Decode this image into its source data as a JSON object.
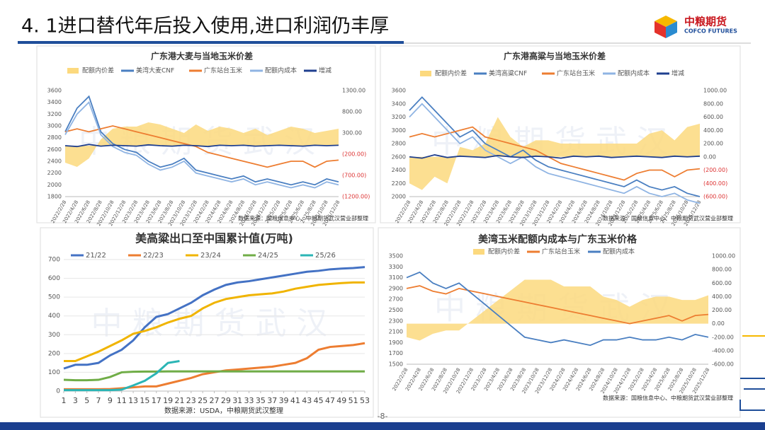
{
  "header": {
    "title": "4. 1进口替代年后投入使用,进口利润仍丰厚",
    "logo_cn": "中粮期货",
    "logo_en": "COFCO FUTURES"
  },
  "page_number": "-8-",
  "chart_data": [
    {
      "type": "line",
      "title": "广东港大麦与当地玉米价差",
      "watermark": "中粮期货武汉",
      "source": "数据来源：国粮信息中心、中粮期货武汉营业部整理",
      "categories": [
        "2022/2/28",
        "2022/4/28",
        "2022/6/28",
        "2022/8/28",
        "2022/10/28",
        "2022/12/28",
        "2023/2/28",
        "2023/4/28",
        "2023/6/28",
        "2023/8/28",
        "2023/10/28",
        "2023/12/28",
        "2024/2/28",
        "2024/4/28",
        "2024/6/28",
        "2024/8/28",
        "2024/10/28",
        "2024/12/28",
        "2025/2/28",
        "2025/4/28",
        "2025/6/28",
        "2025/8/28",
        "2025/10/28",
        "2025/12/28"
      ],
      "ylim": [
        1800,
        3600
      ],
      "yticks": [
        1800,
        2000,
        2200,
        2400,
        2600,
        2800,
        3000,
        3200,
        3400,
        3600
      ],
      "y2lim": [
        -1200,
        1300
      ],
      "y2ticks": [
        {
          "value": -1200,
          "label": "(1200.00)"
        },
        {
          "value": -700,
          "label": "(700.00)"
        },
        {
          "value": -200,
          "label": "(200.00)"
        },
        {
          "value": 300,
          "label": "300.00"
        },
        {
          "value": 800,
          "label": "800.00"
        },
        {
          "value": 1300,
          "label": "1300.00"
        }
      ],
      "grid": false,
      "series": [
        {
          "name": "配额内价差",
          "type": "area",
          "axis": "y2",
          "color": "#fcd97e",
          "values": [
            -400,
            -500,
            -300,
            150,
            400,
            450,
            450,
            550,
            500,
            400,
            300,
            500,
            350,
            450,
            400,
            300,
            400,
            250,
            350,
            450,
            400,
            300,
            350,
            400
          ]
        },
        {
          "name": "美湾大麦CNF",
          "color": "#4a7fc1",
          "values": [
            2900,
            3300,
            3500,
            2900,
            2700,
            2600,
            2550,
            2400,
            2300,
            2350,
            2450,
            2250,
            2200,
            2150,
            2100,
            2150,
            2050,
            2100,
            2050,
            2000,
            2050,
            2000,
            2100,
            2050
          ]
        },
        {
          "name": "广东站台玉米",
          "color": "#ed7d31",
          "values": [
            2900,
            2950,
            2900,
            2950,
            3000,
            2950,
            2900,
            2850,
            2800,
            2750,
            2700,
            2650,
            2550,
            2500,
            2450,
            2400,
            2350,
            2300,
            2350,
            2400,
            2400,
            2300,
            2400,
            2420
          ]
        },
        {
          "name": "配额内成本",
          "color": "#8fb4e3",
          "values": [
            2850,
            3200,
            3400,
            2850,
            2650,
            2550,
            2500,
            2350,
            2250,
            2300,
            2400,
            2200,
            2150,
            2100,
            2050,
            2100,
            2000,
            2050,
            2000,
            1950,
            2000,
            1950,
            2050,
            2000
          ]
        },
        {
          "name": "增减",
          "axis": "y2",
          "color": "#1f3f8f",
          "values": [
            0,
            -20,
            30,
            -10,
            10,
            0,
            -10,
            20,
            0,
            -10,
            10,
            0,
            -20,
            10,
            0,
            10,
            -10,
            0,
            10,
            0,
            -10,
            10,
            0,
            10
          ]
        }
      ]
    },
    {
      "type": "line",
      "title": "广东港高粱与当地玉米价差",
      "watermark": "中粮期货武汉",
      "source": "数据来源：国粮信息中心、中粮期货武汉营业部整理",
      "categories": [
        "2022/2/28",
        "2022/4/28",
        "2022/6/28",
        "2022/8/28",
        "2022/10/28",
        "2022/12/28",
        "2023/2/28",
        "2023/4/28",
        "2023/6/28",
        "2023/8/28",
        "2023/10/28",
        "2023/12/28",
        "2024/2/28",
        "2024/4/28",
        "2024/6/28",
        "2024/8/28",
        "2024/10/28",
        "2024/12/28",
        "2025/2/28",
        "2025/4/28",
        "2025/6/28",
        "2025/8/28",
        "2025/10/28",
        "2025/12/28"
      ],
      "ylim": [
        2000,
        3600
      ],
      "yticks": [
        2000,
        2200,
        2400,
        2600,
        2800,
        3000,
        3200,
        3400,
        3600
      ],
      "y2lim": [
        -600,
        1000
      ],
      "y2ticks": [
        {
          "value": -600,
          "label": "(600.00)"
        },
        {
          "value": -400,
          "label": "(400.00)"
        },
        {
          "value": -200,
          "label": "(200.00)"
        },
        {
          "value": 0,
          "label": "0.00"
        },
        {
          "value": 200,
          "label": "200.00"
        },
        {
          "value": 400,
          "label": "400.00"
        },
        {
          "value": 600,
          "label": "600.00"
        },
        {
          "value": 800,
          "label": "800.00"
        },
        {
          "value": 1000,
          "label": "1000.00"
        }
      ],
      "grid": false,
      "series": [
        {
          "name": "配额内价差",
          "type": "area",
          "axis": "y2",
          "color": "#fcd97e",
          "values": [
            -400,
            -500,
            -300,
            -400,
            150,
            100,
            200,
            600,
            300,
            150,
            250,
            250,
            200,
            200,
            200,
            200,
            200,
            200,
            200,
            350,
            400,
            250,
            450,
            500
          ]
        },
        {
          "name": "美湾高粱CNF",
          "color": "#4a7fc1",
          "values": [
            3300,
            3500,
            3300,
            3100,
            2900,
            3000,
            2800,
            2700,
            2600,
            2700,
            2550,
            2450,
            2400,
            2350,
            2300,
            2250,
            2200,
            2150,
            2250,
            2150,
            2100,
            2150,
            2050,
            2000
          ]
        },
        {
          "name": "广东站台玉米",
          "color": "#ed7d31",
          "values": [
            2900,
            2950,
            2900,
            2950,
            3000,
            3050,
            2900,
            2850,
            2800,
            2750,
            2700,
            2600,
            2500,
            2450,
            2400,
            2350,
            2300,
            2250,
            2350,
            2400,
            2400,
            2300,
            2400,
            2420
          ]
        },
        {
          "name": "配额内成本",
          "color": "#8fb4e3",
          "values": [
            3200,
            3400,
            3200,
            3000,
            2800,
            2900,
            2700,
            2600,
            2500,
            2600,
            2450,
            2350,
            2300,
            2250,
            2200,
            2150,
            2100,
            2050,
            2150,
            2050,
            2000,
            2050,
            1950,
            1900
          ]
        },
        {
          "name": "增减",
          "axis": "y2",
          "color": "#1f3f8f",
          "values": [
            0,
            -20,
            30,
            -10,
            10,
            0,
            -10,
            20,
            0,
            -10,
            10,
            0,
            -20,
            10,
            0,
            10,
            -10,
            0,
            10,
            0,
            -10,
            10,
            0,
            10
          ]
        }
      ]
    },
    {
      "type": "line",
      "title": "美高粱出口至中国累计值(万吨)",
      "watermark": "中粮期货武汉",
      "source": "数据来源：USDA，中粮期货武汉整理",
      "x": [
        1,
        3,
        5,
        7,
        9,
        11,
        13,
        15,
        17,
        19,
        21,
        23,
        25,
        27,
        29,
        31,
        33,
        35,
        37,
        39,
        41,
        43,
        45,
        47,
        49,
        51,
        53
      ],
      "xlim": [
        1,
        53
      ],
      "xticks": [
        1,
        3,
        5,
        7,
        9,
        11,
        13,
        15,
        17,
        19,
        21,
        23,
        25,
        27,
        29,
        31,
        33,
        35,
        37,
        39,
        41,
        43,
        45,
        47,
        49,
        51,
        53
      ],
      "ylim": [
        0,
        700
      ],
      "yticks": [
        0,
        100,
        200,
        300,
        400,
        500,
        600,
        700
      ],
      "grid": true,
      "series": [
        {
          "name": "21/22",
          "color": "#4472c4",
          "values": [
            120,
            140,
            140,
            150,
            190,
            220,
            270,
            340,
            395,
            410,
            440,
            470,
            510,
            540,
            565,
            578,
            585,
            595,
            605,
            615,
            625,
            635,
            640,
            648,
            652,
            655,
            660
          ]
        },
        {
          "name": "22/23",
          "color": "#ed7d31",
          "values": [
            10,
            10,
            10,
            10,
            11,
            15,
            20,
            25,
            25,
            40,
            55,
            70,
            90,
            100,
            110,
            115,
            120,
            125,
            130,
            140,
            150,
            175,
            220,
            235,
            240,
            245,
            255
          ]
        },
        {
          "name": "23/24",
          "color": "#f0b400",
          "values": [
            160,
            160,
            185,
            210,
            240,
            270,
            305,
            320,
            340,
            365,
            385,
            400,
            440,
            470,
            490,
            500,
            510,
            515,
            520,
            530,
            545,
            555,
            565,
            570,
            575,
            578,
            578
          ]
        },
        {
          "name": "24/25",
          "color": "#70ad47",
          "values": [
            60,
            58,
            58,
            60,
            75,
            100,
            103,
            104,
            104,
            105,
            105,
            105,
            105,
            105,
            105,
            105,
            105,
            105,
            105,
            105,
            105,
            105,
            105,
            105,
            105,
            105,
            105
          ]
        },
        {
          "name": "25/26",
          "color": "#2bb5b5",
          "values": [
            5,
            5,
            5,
            5,
            5,
            8,
            30,
            55,
            95,
            150,
            160,
            null,
            null,
            null,
            null,
            null,
            null,
            null,
            null,
            null,
            null,
            null,
            null,
            null,
            null,
            null,
            null
          ]
        }
      ]
    },
    {
      "type": "line",
      "title": "美湾玉米配额内成本与广东玉米价格",
      "watermark": "中粮期货武汉",
      "source": "数据来源：国粮信息中心、中粮期货武汉营业部整理",
      "categories": [
        "2022/2/28",
        "2022/4/28",
        "2022/6/28",
        "2022/8/28",
        "2022/10/28",
        "2022/12/28",
        "2023/2/28",
        "2023/4/28",
        "2023/6/28",
        "2023/8/28",
        "2023/10/28",
        "2023/12/28",
        "2024/2/28",
        "2024/4/28",
        "2024/6/28",
        "2024/8/28",
        "2024/10/28",
        "2024/12/28",
        "2025/2/28",
        "2025/4/28",
        "2025/6/28",
        "2025/8/28",
        "2025/10/28",
        "2025/12/28"
      ],
      "ylim": [
        1500,
        3500
      ],
      "yticks": [
        1500,
        1700,
        1900,
        2100,
        2300,
        2500,
        2700,
        2900,
        3100,
        3300,
        3500
      ],
      "y2lim": [
        -600,
        1000
      ],
      "y2ticks": [
        {
          "value": -600,
          "label": "-600.00"
        },
        {
          "value": -400,
          "label": "-400.00"
        },
        {
          "value": -200,
          "label": "-200.00"
        },
        {
          "value": 0,
          "label": "0.00"
        },
        {
          "value": 200,
          "label": "200.00"
        },
        {
          "value": 400,
          "label": "400.00"
        },
        {
          "value": 600,
          "label": "600.00"
        },
        {
          "value": 800,
          "label": "800.00"
        },
        {
          "value": 1000,
          "label": "1000.00"
        }
      ],
      "grid": false,
      "series": [
        {
          "name": "配额内价差",
          "type": "area",
          "axis": "y2",
          "color": "#fcd97e",
          "values": [
            -200,
            -250,
            -150,
            -100,
            -100,
            50,
            200,
            350,
            500,
            650,
            650,
            650,
            550,
            550,
            550,
            400,
            350,
            250,
            350,
            400,
            400,
            350,
            350,
            420
          ]
        },
        {
          "name": "广东站台玉米",
          "color": "#ed7d31",
          "values": [
            2900,
            2950,
            2850,
            2800,
            2900,
            2850,
            2800,
            2750,
            2700,
            2650,
            2600,
            2550,
            2500,
            2450,
            2400,
            2350,
            2300,
            2250,
            2300,
            2350,
            2400,
            2300,
            2400,
            2420
          ]
        },
        {
          "name": "配额内成本",
          "color": "#4a7fc1",
          "values": [
            3100,
            3200,
            3000,
            2900,
            3000,
            2800,
            2600,
            2400,
            2200,
            2000,
            1950,
            1900,
            1950,
            1900,
            1850,
            1950,
            1950,
            2000,
            1950,
            1950,
            2000,
            1950,
            2050,
            2000
          ]
        }
      ]
    }
  ]
}
